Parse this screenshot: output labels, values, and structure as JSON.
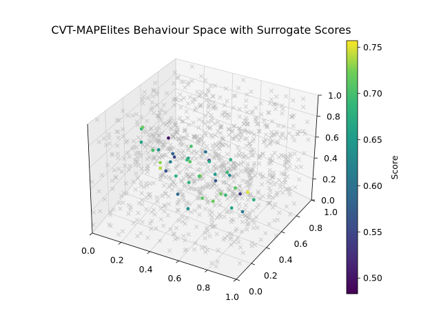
{
  "chart_data": {
    "type": "scatter",
    "projection": "3d",
    "title": "CVT-MAPElites Behaviour Space with Surrogate Scores",
    "xlabel": "",
    "ylabel": "",
    "zlabel": "",
    "xlim": [
      0,
      1
    ],
    "ylim": [
      0,
      1
    ],
    "zlim": [
      0,
      1
    ],
    "x_ticks": [
      "0.0",
      "0.2",
      "0.4",
      "0.6",
      "0.8",
      "1.0"
    ],
    "y_ticks": [
      "0.0",
      "0.2",
      "0.4",
      "0.6",
      "0.8",
      "1.0"
    ],
    "z_ticks": [
      "0.0",
      "0.2",
      "0.4",
      "0.6",
      "0.8",
      "1.0"
    ],
    "grid": true,
    "colorbar": {
      "label": "Score",
      "colormap": "viridis",
      "range": [
        0.483,
        0.757
      ],
      "ticks": [
        "0.50",
        "0.55",
        "0.60",
        "0.65",
        "0.70",
        "0.75"
      ]
    },
    "centroid_marker": {
      "shape": "x",
      "color": "#b0b0b0",
      "count_approx": 1000
    },
    "sample_points": [
      {
        "x": 0.05,
        "y": 0.52,
        "z": 0.6,
        "score": 0.68
      },
      {
        "x": 0.1,
        "y": 0.45,
        "z": 0.7,
        "score": 0.72
      },
      {
        "x": 0.15,
        "y": 0.55,
        "z": 0.4,
        "score": 0.64
      },
      {
        "x": 0.2,
        "y": 0.4,
        "z": 0.55,
        "score": 0.7
      },
      {
        "x": 0.22,
        "y": 0.6,
        "z": 0.35,
        "score": 0.58
      },
      {
        "x": 0.25,
        "y": 0.5,
        "z": 0.62,
        "score": 0.5
      },
      {
        "x": 0.28,
        "y": 0.35,
        "z": 0.45,
        "score": 0.74
      },
      {
        "x": 0.3,
        "y": 0.65,
        "z": 0.3,
        "score": 0.66
      },
      {
        "x": 0.32,
        "y": 0.45,
        "z": 0.5,
        "score": 0.55
      },
      {
        "x": 0.35,
        "y": 0.55,
        "z": 0.4,
        "score": 0.69
      },
      {
        "x": 0.38,
        "y": 0.3,
        "z": 0.6,
        "score": 0.62
      },
      {
        "x": 0.4,
        "y": 0.5,
        "z": 0.45,
        "score": 0.71
      },
      {
        "x": 0.42,
        "y": 0.7,
        "z": 0.3,
        "score": 0.52
      },
      {
        "x": 0.45,
        "y": 0.4,
        "z": 0.35,
        "score": 0.68
      },
      {
        "x": 0.48,
        "y": 0.55,
        "z": 0.55,
        "score": 0.6
      },
      {
        "x": 0.5,
        "y": 0.45,
        "z": 0.4,
        "score": 0.73
      },
      {
        "x": 0.52,
        "y": 0.6,
        "z": 0.3,
        "score": 0.65
      },
      {
        "x": 0.55,
        "y": 0.35,
        "z": 0.5,
        "score": 0.7
      },
      {
        "x": 0.58,
        "y": 0.5,
        "z": 0.35,
        "score": 0.57
      },
      {
        "x": 0.6,
        "y": 0.65,
        "z": 0.45,
        "score": 0.68
      },
      {
        "x": 0.62,
        "y": 0.4,
        "z": 0.25,
        "score": 0.72
      },
      {
        "x": 0.65,
        "y": 0.55,
        "z": 0.4,
        "score": 0.63
      },
      {
        "x": 0.68,
        "y": 0.45,
        "z": 0.3,
        "score": 0.69
      },
      {
        "x": 0.7,
        "y": 0.6,
        "z": 0.2,
        "score": 0.54
      },
      {
        "x": 0.72,
        "y": 0.5,
        "z": 0.35,
        "score": 0.71
      },
      {
        "x": 0.75,
        "y": 0.4,
        "z": 0.25,
        "score": 0.66
      },
      {
        "x": 0.78,
        "y": 0.55,
        "z": 0.3,
        "score": 0.75
      },
      {
        "x": 0.8,
        "y": 0.45,
        "z": 0.2,
        "score": 0.61
      },
      {
        "x": 0.35,
        "y": 0.6,
        "z": 0.5,
        "score": 0.7
      },
      {
        "x": 0.45,
        "y": 0.65,
        "z": 0.35,
        "score": 0.67
      },
      {
        "x": 0.55,
        "y": 0.7,
        "z": 0.25,
        "score": 0.69
      },
      {
        "x": 0.25,
        "y": 0.4,
        "z": 0.45,
        "score": 0.73
      },
      {
        "x": 0.15,
        "y": 0.35,
        "z": 0.65,
        "score": 0.66
      },
      {
        "x": 0.4,
        "y": 0.35,
        "z": 0.25,
        "score": 0.59
      },
      {
        "x": 0.6,
        "y": 0.3,
        "z": 0.35,
        "score": 0.71
      },
      {
        "x": 0.5,
        "y": 0.3,
        "z": 0.2,
        "score": 0.64
      },
      {
        "x": 0.3,
        "y": 0.5,
        "z": 0.25,
        "score": 0.68
      },
      {
        "x": 0.2,
        "y": 0.55,
        "z": 0.2,
        "score": 0.56
      },
      {
        "x": 0.7,
        "y": 0.35,
        "z": 0.4,
        "score": 0.72
      },
      {
        "x": 0.85,
        "y": 0.5,
        "z": 0.3,
        "score": 0.68
      }
    ]
  }
}
